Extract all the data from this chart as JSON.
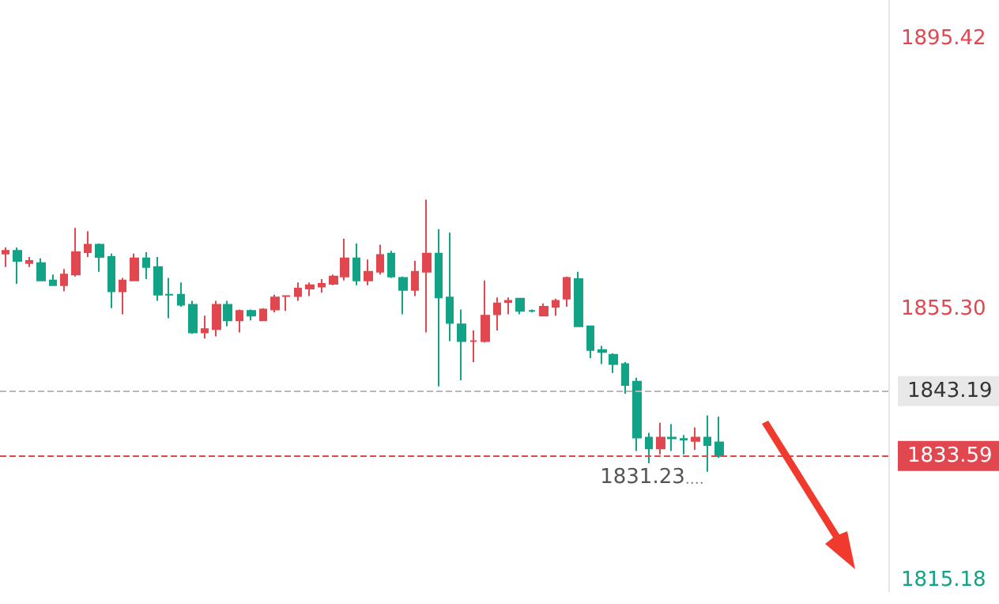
{
  "chart_data": {
    "type": "candlestick",
    "categories": [
      null,
      null,
      null,
      null,
      null,
      null,
      null,
      null,
      null,
      null,
      null,
      null,
      null,
      null,
      null,
      null,
      null,
      null,
      null,
      null,
      null,
      null,
      null,
      null,
      null,
      null,
      null,
      null,
      null,
      null,
      null,
      null,
      null,
      null,
      null,
      null,
      null,
      null,
      null,
      null,
      null,
      null,
      null,
      null,
      null,
      null,
      null,
      null,
      null,
      null,
      null,
      null,
      null,
      null,
      null,
      null,
      null,
      null,
      null,
      null,
      null,
      null,
      null,
      null,
      null,
      null,
      null,
      null,
      null,
      null,
      null,
      null,
      null,
      null,
      null,
      null
    ],
    "ohlc": [
      [
        1863.6,
        1864.5,
        1861.6,
        1864.0
      ],
      [
        1864.0,
        1864.5,
        1859.1,
        1862.5
      ],
      [
        1862.2,
        1863.1,
        1861.6,
        1862.5
      ],
      [
        1862.2,
        1862.9,
        1859.6,
        1859.6
      ],
      [
        1859.6,
        1860.5,
        1858.9,
        1858.9
      ],
      [
        1858.9,
        1861.3,
        1858.0,
        1860.5
      ],
      [
        1860.5,
        1867.4,
        1860.2,
        1863.8
      ],
      [
        1863.8,
        1866.9,
        1863.1,
        1864.9
      ],
      [
        1864.9,
        1865.1,
        1860.9,
        1863.1
      ],
      [
        1863.1,
        1863.6,
        1855.5,
        1858.0
      ],
      [
        1858.0,
        1860.0,
        1854.6,
        1859.6
      ],
      [
        1859.6,
        1863.6,
        1859.6,
        1862.9
      ],
      [
        1862.9,
        1863.8,
        1859.8,
        1861.6
      ],
      [
        1861.6,
        1863.1,
        1856.6,
        1857.5
      ],
      [
        1857.5,
        1860.0,
        1854.0,
        1857.5
      ],
      [
        1857.5,
        1859.3,
        1855.7,
        1856.0
      ],
      [
        1856.0,
        1856.6,
        1851.7,
        1851.9
      ],
      [
        1851.9,
        1854.4,
        1851.0,
        1852.4
      ],
      [
        1852.4,
        1856.6,
        1851.3,
        1856.0
      ],
      [
        1856.0,
        1856.6,
        1852.8,
        1853.7
      ],
      [
        1853.7,
        1855.3,
        1851.9,
        1855.1
      ],
      [
        1855.1,
        1855.3,
        1853.7,
        1854.4
      ],
      [
        1853.7,
        1855.5,
        1853.7,
        1855.3
      ],
      [
        1855.3,
        1857.5,
        1854.9,
        1857.1
      ],
      [
        1857.3,
        1857.3,
        1855.1,
        1857.3
      ],
      [
        1857.3,
        1859.3,
        1856.6,
        1858.4
      ],
      [
        1858.4,
        1859.3,
        1857.3,
        1858.9
      ],
      [
        1858.7,
        1859.8,
        1857.8,
        1859.1
      ],
      [
        1859.1,
        1860.5,
        1858.9,
        1860.2
      ],
      [
        1860.2,
        1865.8,
        1859.6,
        1862.9
      ],
      [
        1862.9,
        1865.1,
        1858.9,
        1859.6
      ],
      [
        1859.6,
        1862.7,
        1858.9,
        1860.9
      ],
      [
        1860.9,
        1864.9,
        1860.5,
        1863.4
      ],
      [
        1863.6,
        1864.0,
        1860.0,
        1860.2
      ],
      [
        1860.0,
        1860.2,
        1854.6,
        1858.2
      ],
      [
        1858.2,
        1862.5,
        1857.3,
        1860.9
      ],
      [
        1860.9,
        1871.6,
        1851.9,
        1863.6
      ],
      [
        1863.6,
        1867.2,
        1843.9,
        1857.1
      ],
      [
        1857.1,
        1866.7,
        1850.6,
        1853.3
      ],
      [
        1853.1,
        1855.3,
        1844.8,
        1850.6
      ],
      [
        1850.6,
        1852.2,
        1847.5,
        1850.6
      ],
      [
        1850.6,
        1859.6,
        1850.4,
        1854.4
      ],
      [
        1854.6,
        1857.1,
        1852.2,
        1856.2
      ],
      [
        1856.4,
        1857.1,
        1854.6,
        1856.6
      ],
      [
        1856.9,
        1856.9,
        1854.6,
        1855.1
      ],
      [
        1855.1,
        1855.3,
        1854.9,
        1855.1
      ],
      [
        1854.4,
        1856.2,
        1854.4,
        1855.7
      ],
      [
        1855.7,
        1856.9,
        1854.4,
        1856.6
      ],
      [
        1856.9,
        1860.2,
        1855.7,
        1860.0
      ],
      [
        1859.8,
        1860.9,
        1852.8,
        1852.8
      ],
      [
        1852.8,
        1852.8,
        1848.1,
        1849.3
      ],
      [
        1849.3,
        1849.9,
        1847.2,
        1849.0
      ],
      [
        1848.6,
        1848.8,
        1845.9,
        1847.2
      ],
      [
        1847.2,
        1847.5,
        1842.8,
        1844.1
      ],
      [
        1844.6,
        1845.2,
        1834.3,
        1836.3
      ],
      [
        1836.3,
        1837.0,
        1832.5,
        1834.7
      ],
      [
        1834.7,
        1838.5,
        1833.8,
        1836.3
      ],
      [
        1836.3,
        1838.3,
        1834.3,
        1836.2
      ],
      [
        1836.1,
        1836.7,
        1833.8,
        1836.0
      ],
      [
        1835.8,
        1837.8,
        1834.5,
        1836.3
      ],
      [
        1836.3,
        1839.6,
        1831.23,
        1835.2
      ],
      [
        1835.6,
        1839.4,
        1833.3,
        1833.59
      ],
      null,
      null,
      null,
      null,
      null,
      null,
      null,
      null,
      null,
      null,
      null,
      null,
      null,
      null
    ],
    "colors": [
      "#e0474f",
      "#12a386",
      "#e0474f",
      "#12a386",
      "#12a386",
      "#e0474f",
      "#e0474f",
      "#e0474f",
      "#12a386",
      "#12a386",
      "#e0474f",
      "#e0474f",
      "#12a386",
      "#12a386",
      "#12a386",
      "#12a386",
      "#12a386",
      "#e0474f",
      "#e0474f",
      "#12a386",
      "#e0474f",
      "#12a386",
      "#e0474f",
      "#e0474f",
      "#e0474f",
      "#e0474f",
      "#e0474f",
      "#e0474f",
      "#e0474f",
      "#e0474f",
      "#12a386",
      "#e0474f",
      "#e0474f",
      "#12a386",
      "#12a386",
      "#e0474f",
      "#e0474f",
      "#12a386",
      "#12a386",
      "#12a386",
      "#e0474f",
      "#e0474f",
      "#e0474f",
      "#e0474f",
      "#12a386",
      "#12a386",
      "#e0474f",
      "#e0474f",
      "#e0474f",
      "#12a386",
      "#12a386",
      "#12a386",
      "#12a386",
      "#12a386",
      "#12a386",
      "#12a386",
      "#e0474f",
      "#12a386",
      "#12a386",
      "#e0474f",
      "#12a386",
      "#12a386",
      null,
      null,
      null,
      null,
      null,
      null,
      null,
      null,
      null,
      null,
      null,
      null,
      null,
      null
    ],
    "ylim": [
      1813.5,
      1901.2
    ],
    "yticks": [
      1815.18,
      {
        "value": 1855.3,
        "label": "1855.30"
      },
      1895.42
    ],
    "ref_lines": [
      {
        "axis": "y",
        "value": 1843.19,
        "label": "1843.19",
        "color": "#b8b8b8",
        "line_style": "dashed"
      },
      {
        "axis": "y",
        "value": 1833.59,
        "label": "1833.59",
        "color": "#e0474f",
        "line_style": "dashed"
      }
    ],
    "annotations": [
      "1831.23"
    ],
    "grid": false
  }
}
